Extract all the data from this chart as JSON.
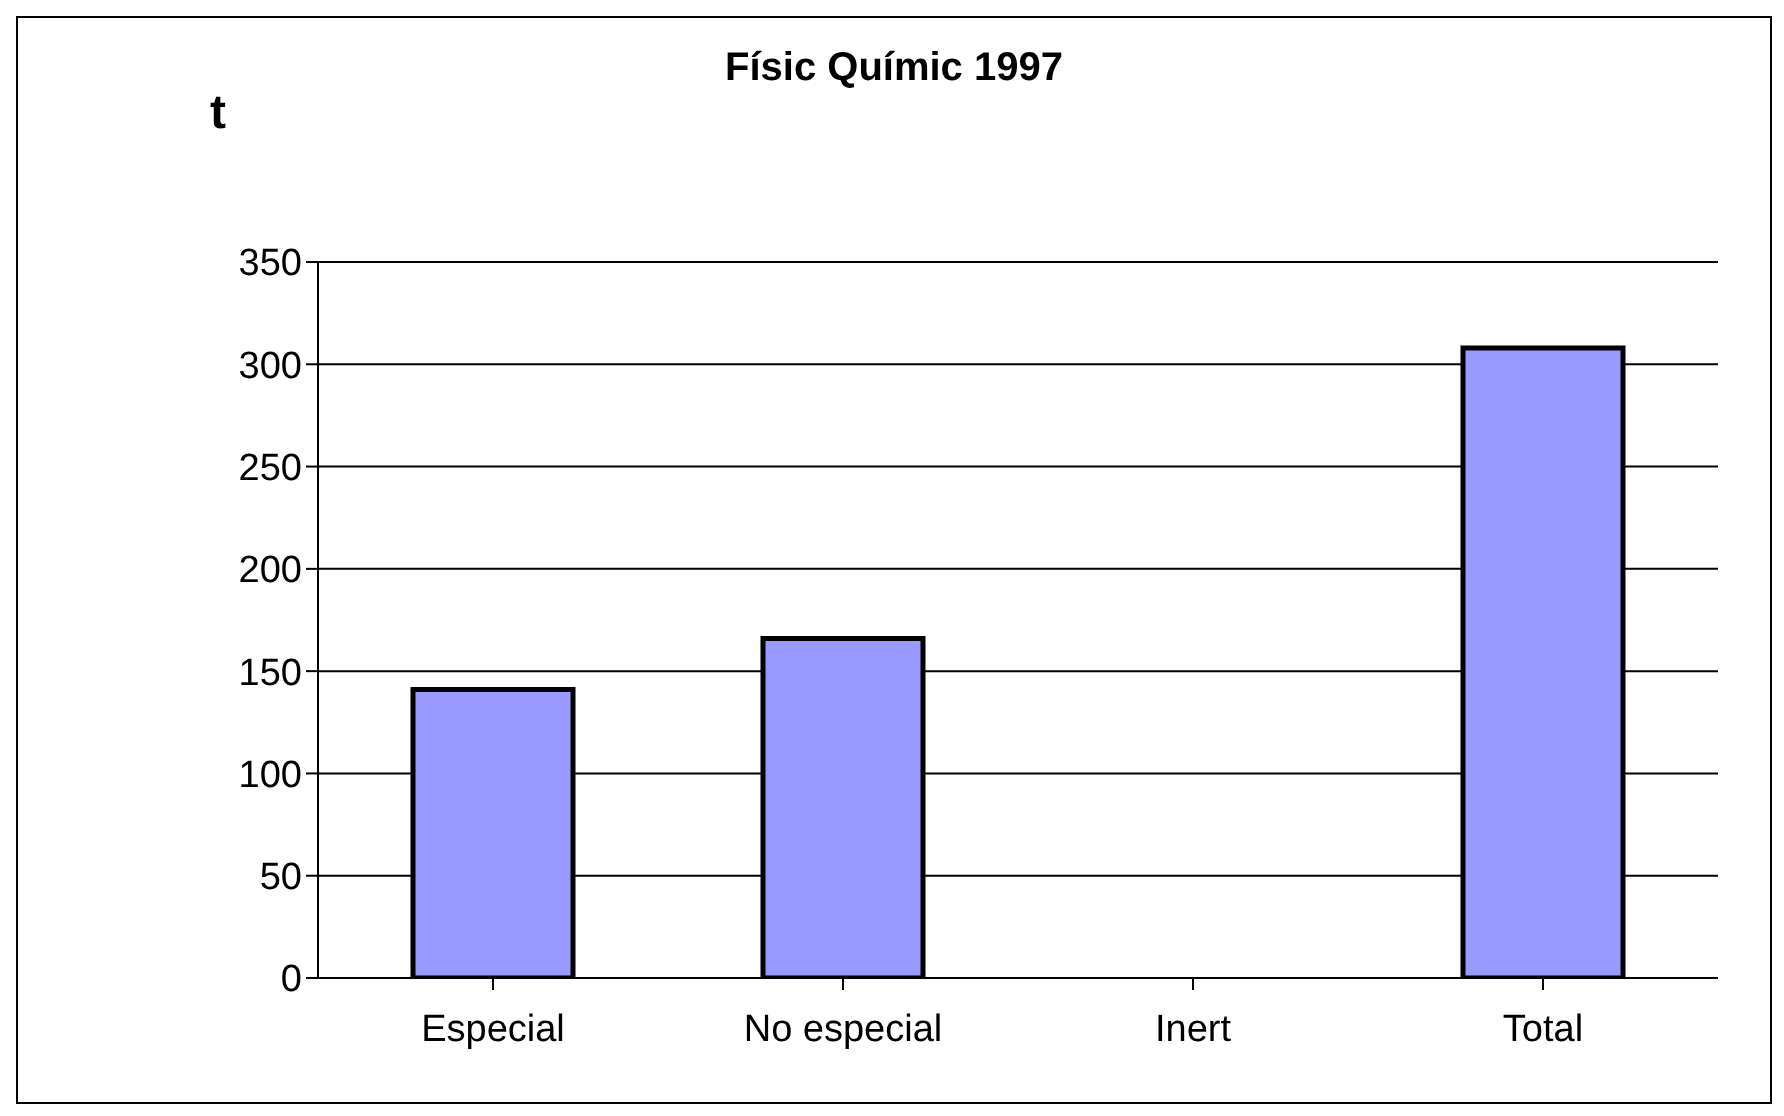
{
  "chart_data": {
    "type": "bar",
    "title": "Físic Químic 1997",
    "ylabel": "t",
    "categories": [
      "Especial",
      "No especial",
      "Inert",
      "Total"
    ],
    "values": [
      141,
      166,
      0,
      308
    ],
    "color": "#9999ff",
    "ylim": [
      0,
      350
    ],
    "yticks": [
      0,
      50,
      100,
      150,
      200,
      250,
      300,
      350
    ],
    "grid": "y"
  }
}
